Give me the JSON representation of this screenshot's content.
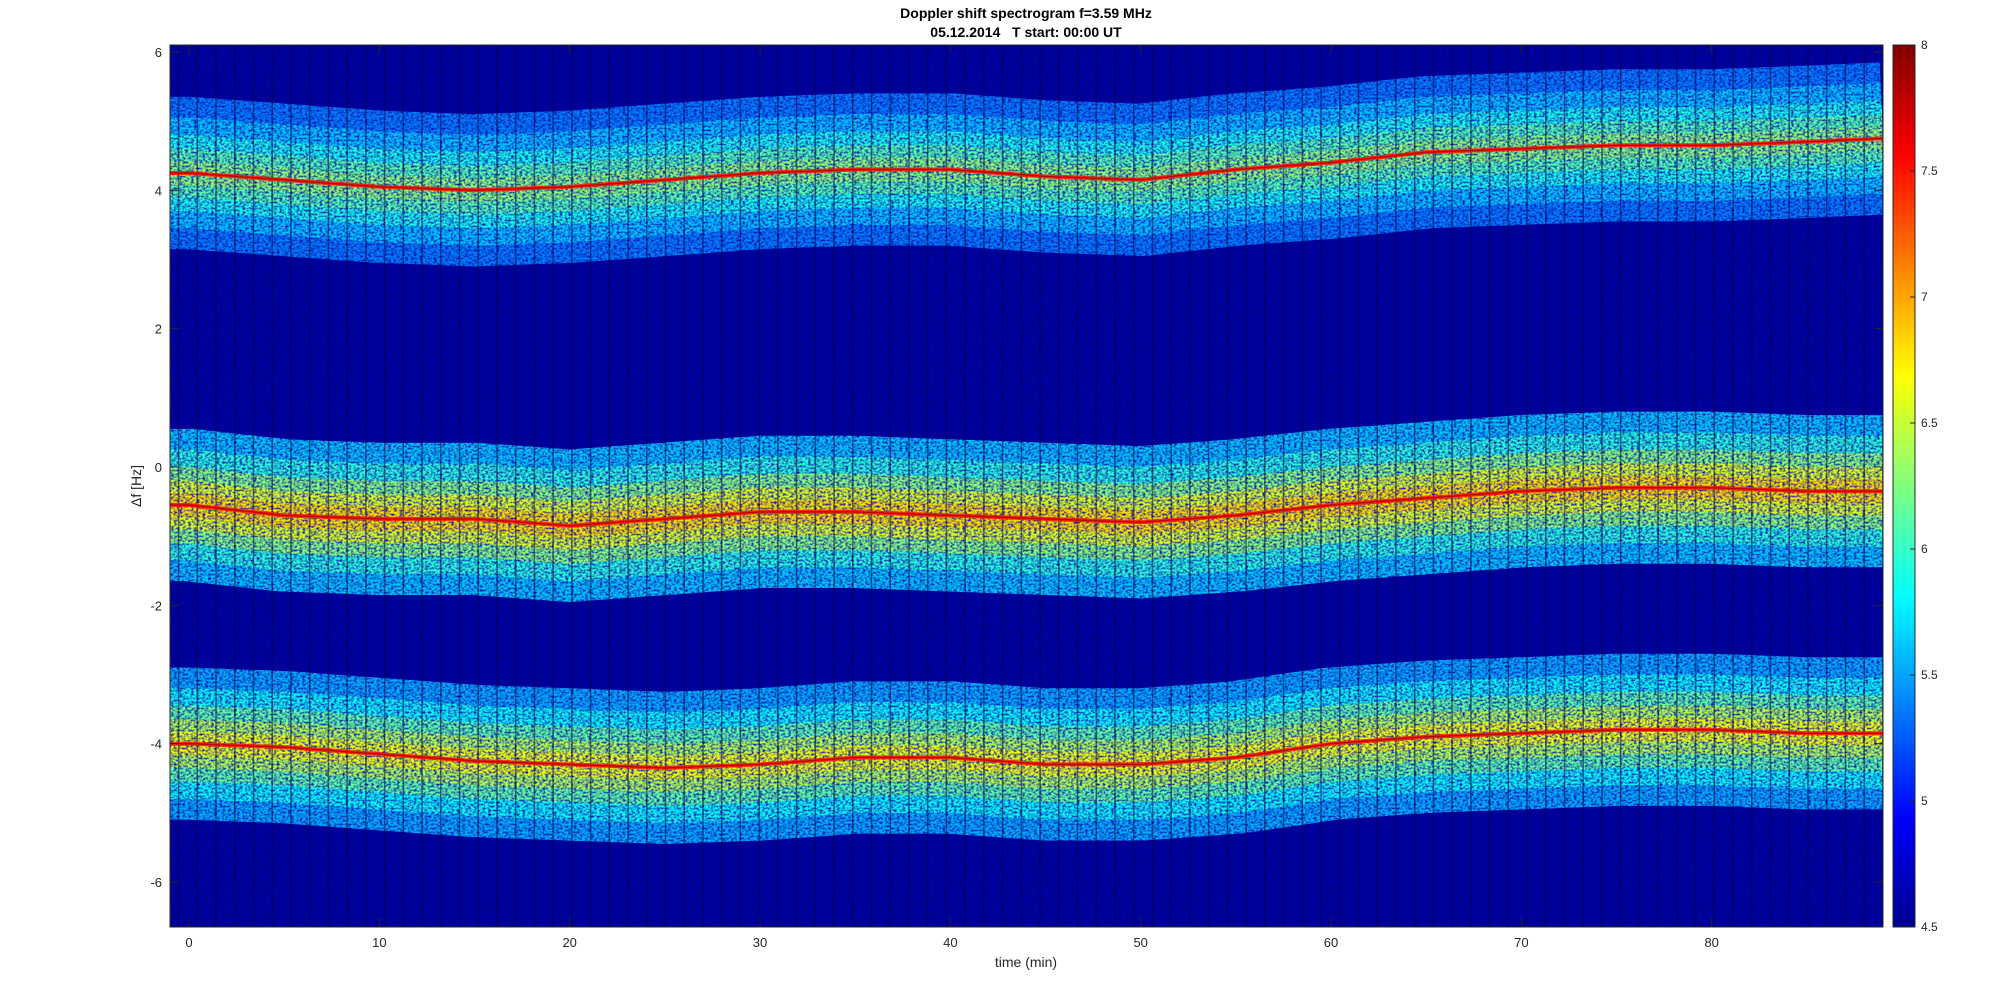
{
  "figure": {
    "title_line1": "Doppler shift spectrogram f=3.59 MHz",
    "title_line2": "05.12.2014   T start: 00:00 UT"
  },
  "chart_data": {
    "type": "heatmap",
    "title": "Doppler shift spectrogram f=3.59 MHz",
    "subtitle": "05.12.2014   T start: 00:00 UT",
    "xlabel": "time (min)",
    "ylabel": "Δf [Hz]",
    "xlim": [
      -1,
      89
    ],
    "ylim": [
      -6.65,
      6.1
    ],
    "xticks": [
      0,
      10,
      20,
      30,
      40,
      50,
      60,
      70,
      80
    ],
    "yticks": [
      -6,
      -4,
      -2,
      0,
      2,
      4,
      6
    ],
    "colorbar": {
      "clim": [
        4.5,
        8
      ],
      "ticks": [
        4.5,
        5,
        5.5,
        6,
        6.5,
        7,
        7.5,
        8
      ],
      "tick_labels": [
        "4.5",
        "5",
        "5.5",
        "6",
        "6.5",
        "7",
        "7.5",
        "8"
      ],
      "colormap": "jet"
    },
    "grid": false,
    "series": [
      {
        "x": [
          0,
          5,
          10,
          15,
          20,
          25,
          30,
          35,
          40,
          45,
          50,
          55,
          60,
          65,
          70,
          75,
          80,
          85,
          89
        ],
        "y": [
          4.25,
          4.15,
          4.05,
          4.0,
          4.05,
          4.15,
          4.25,
          4.3,
          4.3,
          4.2,
          4.15,
          4.3,
          4.4,
          4.55,
          4.6,
          4.65,
          4.65,
          4.7,
          4.75
        ],
        "intensity": 6.6
      },
      {
        "x": [
          0,
          5,
          10,
          15,
          20,
          25,
          30,
          35,
          40,
          45,
          50,
          55,
          60,
          65,
          70,
          75,
          80,
          85,
          89
        ],
        "y": [
          -0.55,
          -0.7,
          -0.75,
          -0.75,
          -0.85,
          -0.75,
          -0.65,
          -0.65,
          -0.7,
          -0.75,
          -0.8,
          -0.7,
          -0.55,
          -0.45,
          -0.35,
          -0.3,
          -0.3,
          -0.35,
          -0.35
        ],
        "intensity": 7.2
      },
      {
        "x": [
          0,
          5,
          10,
          15,
          20,
          25,
          30,
          35,
          40,
          45,
          50,
          55,
          60,
          65,
          70,
          75,
          80,
          85,
          89
        ],
        "y": [
          -4.0,
          -4.05,
          -4.15,
          -4.25,
          -4.3,
          -4.35,
          -4.3,
          -4.2,
          -4.2,
          -4.3,
          -4.3,
          -4.2,
          -4.0,
          -3.9,
          -3.85,
          -3.8,
          -3.8,
          -3.85,
          -3.85
        ],
        "intensity": 7.0
      }
    ]
  },
  "colors": {
    "background_low": "#00008f",
    "axis": "#262626"
  }
}
